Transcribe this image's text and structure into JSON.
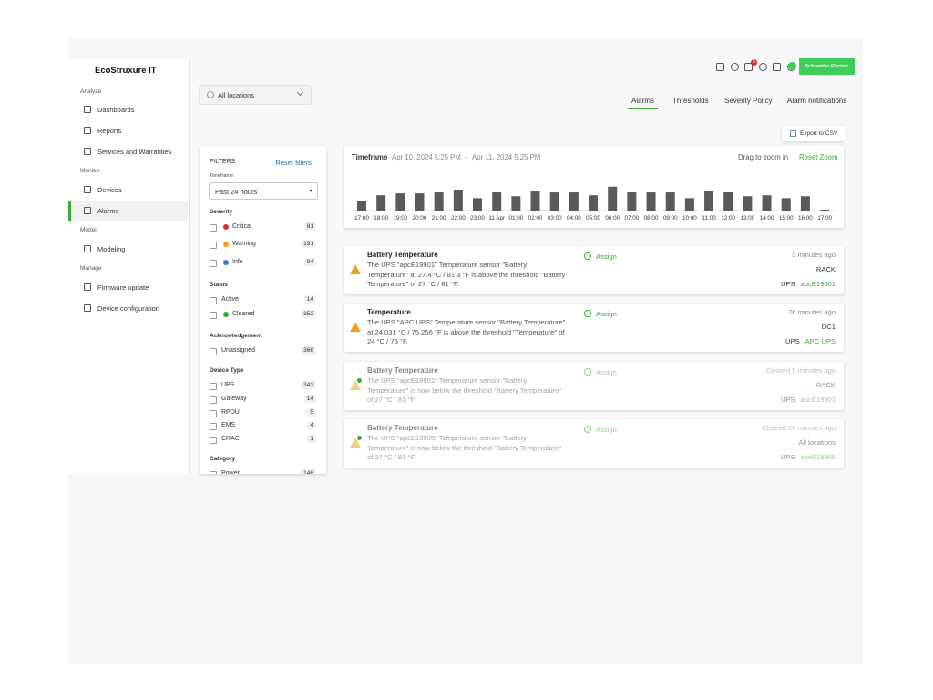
{
  "header": {
    "brand": "EcoStruxure IT",
    "company": "Schneider Electric",
    "notification_count": 5
  },
  "sidebar": {
    "sections": [
      {
        "title": "Analyze",
        "items": [
          "Dashboards",
          "Reports",
          "Services and Warranties"
        ]
      },
      {
        "title": "Monitor",
        "items": [
          "Devices",
          "Alarms"
        ]
      },
      {
        "title": "Model",
        "items": [
          "Modeling"
        ]
      },
      {
        "title": "Manage",
        "items": [
          "Firmware update",
          "Device configuration"
        ]
      }
    ]
  },
  "location_selector": "All locations",
  "tabs": [
    "Alarms",
    "Thresholds",
    "Severity Policy",
    "Alarm notifications"
  ],
  "export_button": "Export to CSV",
  "filters": {
    "title": "FILTERS",
    "reset": "Reset filters",
    "timeframe_label": "Timeframe",
    "timeframe_value": "Past 24 hours",
    "groups": [
      {
        "title": "Severity",
        "items": [
          {
            "label": "Critical",
            "count": 81,
            "color": "#d9302c"
          },
          {
            "label": "Warning",
            "count": 191,
            "color": "#f0a020"
          },
          {
            "label": "Info",
            "count": 94,
            "color": "#2f7fd6"
          }
        ]
      },
      {
        "title": "Status",
        "items": [
          {
            "label": "Active",
            "count": 14
          },
          {
            "label": "Cleared",
            "count": 352,
            "color": "#3aaa35"
          }
        ]
      },
      {
        "title": "Acknowledgement",
        "items": [
          {
            "label": "Unassigned",
            "count": 366
          }
        ]
      },
      {
        "title": "Device Type",
        "items": [
          {
            "label": "UPS",
            "count": 342
          },
          {
            "label": "Gateway",
            "count": 14
          },
          {
            "label": "RPDU",
            "count": 5
          },
          {
            "label": "EMS",
            "count": 4
          },
          {
            "label": "CRAC",
            "count": 1
          }
        ]
      },
      {
        "title": "Category",
        "items": [
          {
            "label": "Power",
            "count": 146
          }
        ]
      }
    ]
  },
  "timeline": {
    "title": "Timeframe",
    "start": "Apr 10, 2024 5:25 PM",
    "separator": "-",
    "end": "Apr 11, 2024 5:25 PM",
    "hint": "Drag to zoom in",
    "reset": "Reset Zoom",
    "labels": [
      "17:00",
      "18:00",
      "19:00",
      "20:00",
      "21:00",
      "22:00",
      "23:00",
      "11 Apr",
      "01:00",
      "02:00",
      "03:00",
      "04:00",
      "05:00",
      "06:00",
      "07:00",
      "08:00",
      "09:00",
      "10:00",
      "11:00",
      "12:00",
      "13:00",
      "14:00",
      "15:00",
      "16:00",
      "17:00"
    ],
    "counts": [
      10,
      16,
      18,
      18,
      19,
      21,
      13,
      19,
      15,
      20,
      19,
      19,
      16,
      25,
      19,
      19,
      19,
      13,
      20,
      19,
      15,
      16,
      13,
      15,
      1
    ]
  },
  "alarms": [
    {
      "title": "Battery Temperature",
      "description": "The UPS \"apcE19901\" Temperature sensor \"Battery Temperature\" at 27.4 °C / 81.3 °F is above the threshold \"Battery Temperature\" of 27 °C / 81 °F.",
      "action": "Assign",
      "time": "3 minutes ago",
      "location": "RACK",
      "device_type": "UPS",
      "device": "apcE19901"
    },
    {
      "title": "Temperature",
      "description": "The UPS \"APC UPS\" Temperature sensor \"Battery Temperature\" at 24.031 °C / 75.256 °F is above the threshold \"Temperature\" of 24 °C / 75 °F.",
      "action": "Assign",
      "time": "26 minutes ago",
      "location": "DC1",
      "device_type": "UPS",
      "device": "APC UPS"
    },
    {
      "title": "Battery Temperature",
      "description": "The UPS \"apcE19901\" Temperature sensor \"Battery Temperature\" is now below the threshold \"Battery Temperature\" of 27 °C / 81 °F.",
      "action": "Assign",
      "time": "Cleared 9 minutes ago",
      "location": "RACK",
      "device_type": "UPS",
      "device": "apcE19901"
    },
    {
      "title": "Battery Temperature",
      "description": "The UPS \"apcE19905\" Temperature sensor \"Battery Temperature\" is now below the threshold \"Battery Temperature\" of 27 °C / 81 °F.",
      "action": "Assign",
      "time": "Cleared 10 minutes ago",
      "location": "All locations",
      "device_type": "UPS",
      "device": "apcE19905"
    }
  ]
}
